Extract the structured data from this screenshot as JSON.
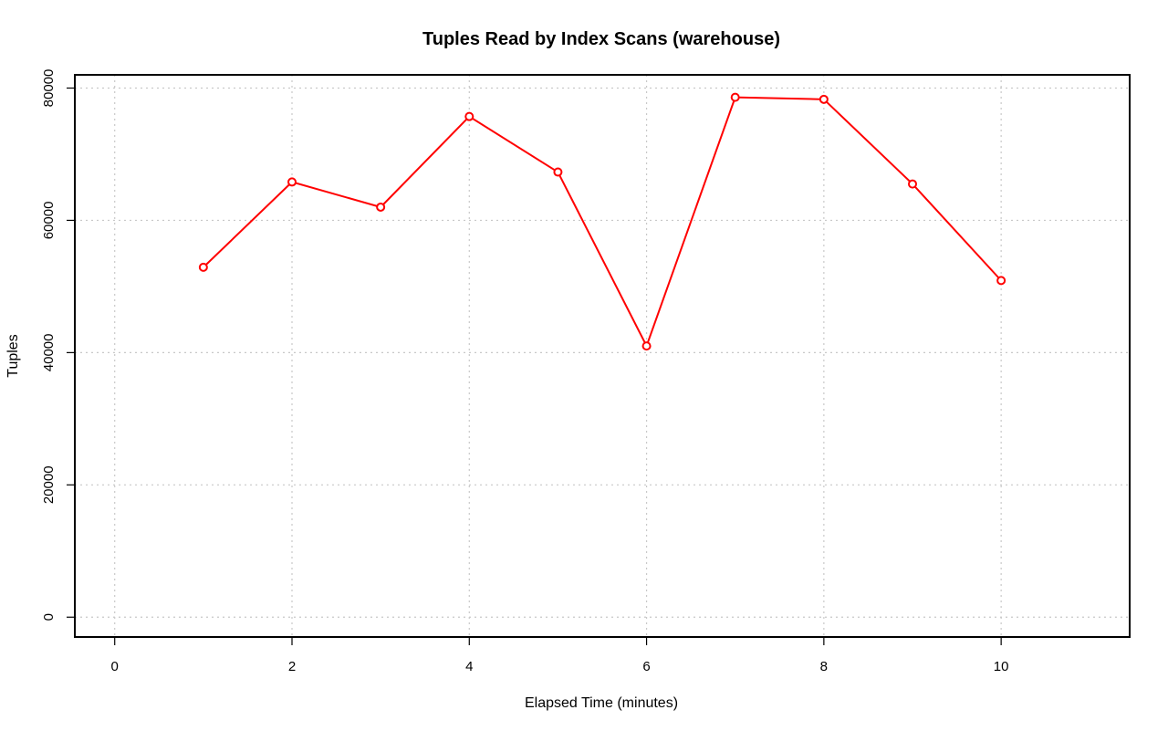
{
  "chart_data": {
    "type": "line",
    "title": "Tuples Read by Index Scans (warehouse)",
    "xlabel": "Elapsed Time (minutes)",
    "ylabel": "Tuples",
    "xlim": [
      -0.45,
      11.45
    ],
    "ylim": [
      -3000,
      82000
    ],
    "x_ticks": [
      0,
      2,
      4,
      6,
      8,
      10
    ],
    "x_tick_labels": [
      "0",
      "2",
      "4",
      "6",
      "8",
      "10"
    ],
    "y_ticks": [
      0,
      20000,
      40000,
      60000,
      80000
    ],
    "y_tick_labels": [
      "0",
      "20000",
      "40000",
      "60000",
      "80000"
    ],
    "grid": true,
    "legend": "none",
    "x": [
      1,
      2,
      3,
      4,
      5,
      6,
      7,
      8,
      9,
      10
    ],
    "series": [
      {
        "color": "#ff0000",
        "values": [
          52900,
          65800,
          62000,
          75700,
          67300,
          41000,
          78600,
          78300,
          65500,
          50900
        ]
      }
    ]
  }
}
